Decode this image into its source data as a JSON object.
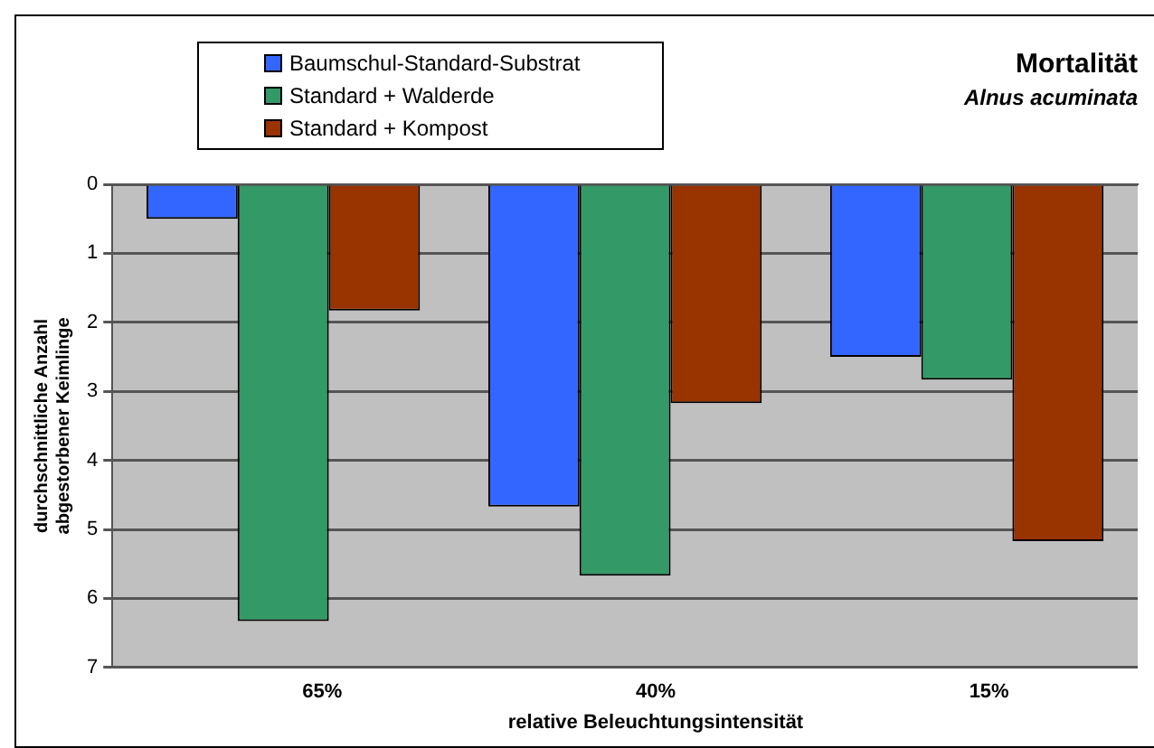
{
  "chart_data": {
    "type": "bar",
    "title": "Mortalität",
    "subtitle": "Alnus acuminata",
    "xlabel": "relative Beleuchtungsintensität",
    "ylabel": "durchschnittliche Anzahl abgestorbener Keimlinge",
    "categories": [
      "65%",
      "40%",
      "15%"
    ],
    "series": [
      {
        "name": "Baumschul-Standard-Substrat",
        "color": "#3366ff",
        "values": [
          0.5,
          4.67,
          2.5
        ]
      },
      {
        "name": "Standard + Walderde",
        "color": "#339966",
        "values": [
          6.33,
          5.67,
          2.83
        ]
      },
      {
        "name": "Standard + Kompost",
        "color": "#993300",
        "values": [
          1.83,
          3.17,
          5.17
        ]
      }
    ],
    "ylim": [
      7,
      0
    ],
    "yticks": [
      0,
      1,
      2,
      3,
      4,
      5,
      6,
      7
    ],
    "grid": "y",
    "legend": "top left"
  }
}
